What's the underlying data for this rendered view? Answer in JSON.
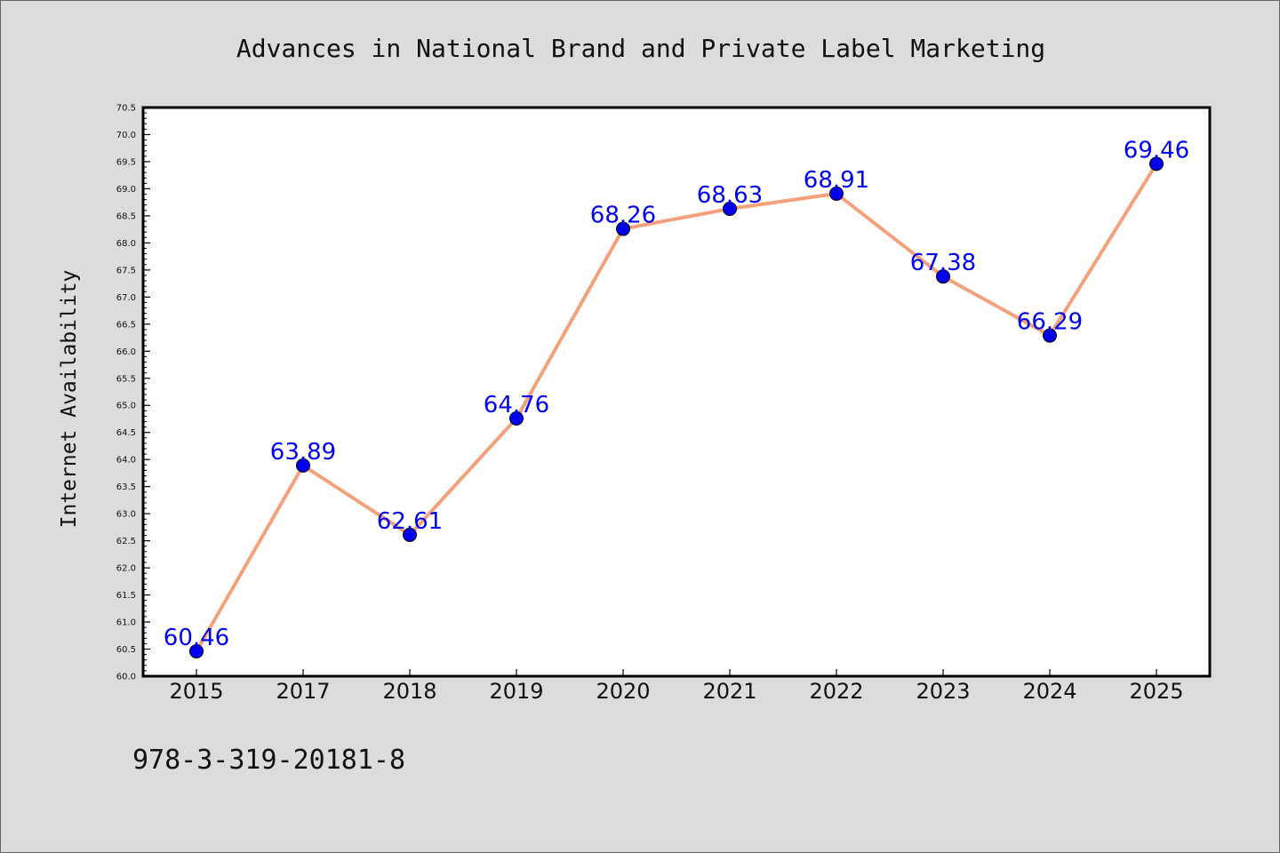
{
  "chart_data": {
    "type": "line",
    "title": "Advances in National Brand and Private Label Marketing",
    "xlabel": "",
    "ylabel": "Internet Availability",
    "categories": [
      "2015",
      "2017",
      "2018",
      "2019",
      "2020",
      "2021",
      "2022",
      "2023",
      "2024",
      "2025"
    ],
    "series": [
      {
        "values": [
          60.46,
          63.89,
          62.61,
          64.76,
          68.26,
          68.63,
          68.91,
          67.38,
          66.29,
          69.46
        ]
      }
    ],
    "data_labels": [
      "60.46",
      "63.89",
      "62.61",
      "64.76",
      "68.26",
      "68.63",
      "68.91",
      "67.38",
      "66.29",
      "69.46"
    ],
    "ylim": [
      60.0,
      70.5
    ],
    "yticks": [
      "60.0",
      "60.5",
      "61.0",
      "61.5",
      "62.0",
      "62.5",
      "63.0",
      "63.5",
      "64.0",
      "64.5",
      "65.0",
      "65.5",
      "66.0",
      "66.5",
      "67.0",
      "67.5",
      "68.0",
      "68.5",
      "69.0",
      "69.5",
      "70.0",
      "70.5"
    ],
    "grid": false,
    "legend": "none",
    "colors": {
      "line": "#f4a07a",
      "marker": "#0000ee",
      "label": "#0000ee",
      "background": "#dcdcdc",
      "plot": "#ffffff"
    }
  },
  "footer": {
    "isbn": "978-3-319-20181-8"
  }
}
